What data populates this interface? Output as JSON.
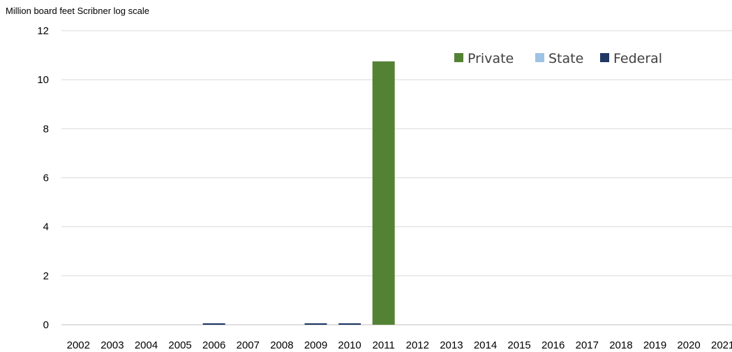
{
  "chart_data": {
    "type": "bar",
    "ylabel": "Million board feet Scribner log scale",
    "xlabel": "",
    "title": "",
    "ylim": [
      0,
      12
    ],
    "yticks": [
      0,
      2,
      4,
      6,
      8,
      10,
      12
    ],
    "grid": true,
    "legend_position": "top-right",
    "categories": [
      "2002",
      "2003",
      "2004",
      "2005",
      "2006",
      "2007",
      "2008",
      "2009",
      "2010",
      "2011",
      "2012",
      "2013",
      "2014",
      "2015",
      "2016",
      "2017",
      "2018",
      "2019",
      "2020",
      "2021"
    ],
    "series": [
      {
        "name": "Private",
        "color": "#548235",
        "values": [
          0,
          0,
          0,
          0,
          0,
          0,
          0,
          0,
          0,
          10.75,
          0,
          0,
          0,
          0,
          0,
          0,
          0,
          0,
          0,
          0
        ]
      },
      {
        "name": "State",
        "color": "#9DC3E6",
        "values": [
          0,
          0,
          0,
          0,
          0,
          0,
          0,
          0,
          0,
          0,
          0,
          0,
          0,
          0,
          0,
          0,
          0,
          0,
          0,
          0
        ]
      },
      {
        "name": "Federal",
        "color": "#1F3864",
        "values": [
          0,
          0,
          0,
          0,
          0.06,
          0,
          0,
          0.06,
          0.06,
          0,
          0,
          0,
          0,
          0,
          0,
          0,
          0,
          0,
          0,
          0
        ]
      }
    ]
  }
}
